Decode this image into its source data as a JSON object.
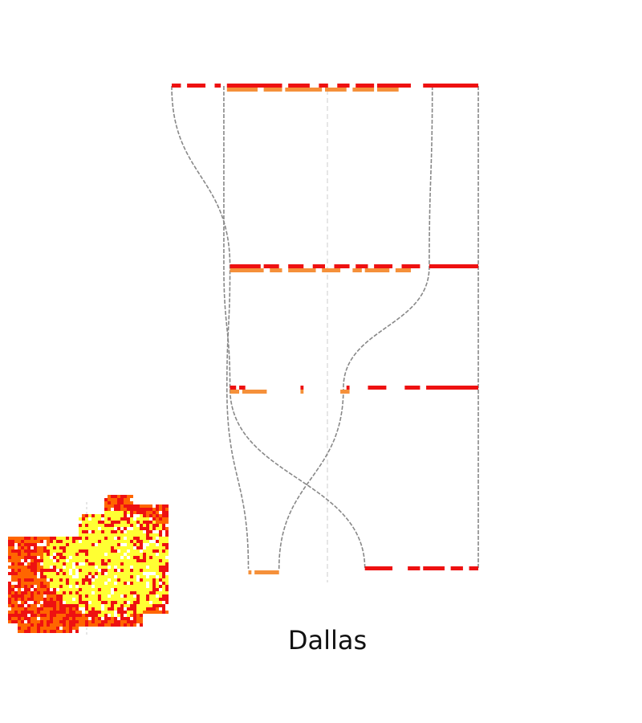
{
  "chart_data": {
    "type": "parallel-segment-flow",
    "title": "Dallas",
    "colors": {
      "high": "#ee1111",
      "low": "#f5903a",
      "connector": "#888888",
      "center": "#cccccc",
      "map_yellow": "#ffff33",
      "map_orange": "#ff6600",
      "map_red": "#ee1111"
    },
    "levels": [
      {
        "rank": 1,
        "low_segments": [
          [
            0.18,
            0.28
          ],
          [
            0.3,
            0.36
          ],
          [
            0.37,
            0.49
          ],
          [
            0.5,
            0.57
          ],
          [
            0.59,
            0.66
          ],
          [
            0.67,
            0.74
          ]
        ],
        "high_segments": [
          [
            0.0,
            0.03
          ],
          [
            0.05,
            0.11
          ],
          [
            0.14,
            0.16
          ],
          [
            0.18,
            0.36
          ],
          [
            0.38,
            0.45
          ],
          [
            0.48,
            0.51
          ],
          [
            0.54,
            0.58
          ],
          [
            0.6,
            0.66
          ],
          [
            0.67,
            0.78
          ],
          [
            0.82,
            1.0
          ]
        ]
      },
      {
        "rank": 2,
        "low_segments": [
          [
            0.19,
            0.3
          ],
          [
            0.32,
            0.36
          ],
          [
            0.38,
            0.47
          ],
          [
            0.49,
            0.55
          ],
          [
            0.59,
            0.62
          ],
          [
            0.63,
            0.71
          ],
          [
            0.73,
            0.78
          ]
        ],
        "high_segments": [
          [
            0.19,
            0.29
          ],
          [
            0.3,
            0.35
          ],
          [
            0.38,
            0.43
          ],
          [
            0.46,
            0.5
          ],
          [
            0.53,
            0.58
          ],
          [
            0.6,
            0.64
          ],
          [
            0.66,
            0.72
          ],
          [
            0.75,
            0.81
          ],
          [
            0.84,
            1.0
          ]
        ]
      },
      {
        "rank": 3,
        "low_segments": [
          [
            0.19,
            0.22
          ],
          [
            0.23,
            0.31
          ],
          [
            0.42,
            0.43
          ],
          [
            0.55,
            0.58
          ]
        ],
        "high_segments": [
          [
            0.19,
            0.21
          ],
          [
            0.22,
            0.24
          ],
          [
            0.42,
            0.43
          ],
          [
            0.57,
            0.58
          ],
          [
            0.64,
            0.7
          ],
          [
            0.76,
            0.81
          ],
          [
            0.83,
            1.0
          ]
        ]
      },
      {
        "rank": 4,
        "low_segments": [
          [
            0.25,
            0.26
          ],
          [
            0.27,
            0.35
          ]
        ],
        "high_segments": [
          [
            0.63,
            0.72
          ],
          [
            0.77,
            0.81
          ],
          [
            0.82,
            0.89
          ],
          [
            0.91,
            0.95
          ],
          [
            0.97,
            1.0
          ]
        ]
      }
    ],
    "connectors": [
      {
        "from_level": 1,
        "to_level": 4,
        "x": [
          0.0,
          0.19,
          0.18,
          0.25
        ]
      },
      {
        "from_level": 1,
        "to_level": 4,
        "x": [
          0.17,
          0.17,
          0.19,
          0.63
        ]
      },
      {
        "from_level": 1,
        "to_level": 4,
        "x": [
          0.85,
          0.84,
          0.56,
          0.35
        ]
      },
      {
        "from_level": 1,
        "to_level": 4,
        "x": [
          1.0,
          1.0,
          1.0,
          1.0
        ]
      }
    ]
  }
}
